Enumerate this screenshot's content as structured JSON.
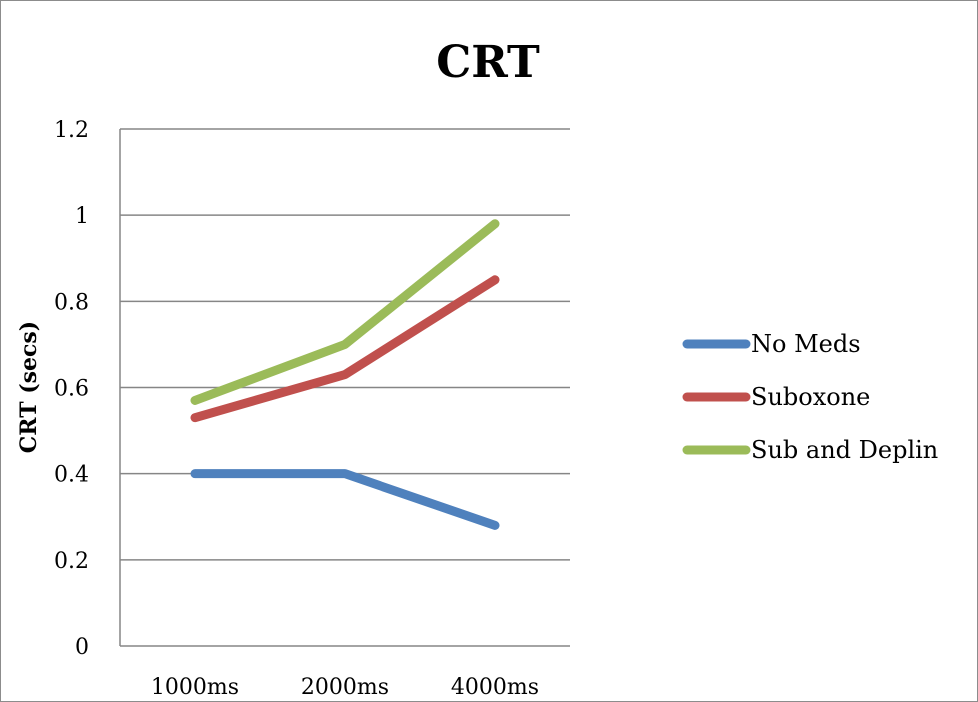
{
  "chart_data": {
    "type": "line",
    "title": "CRT",
    "xlabel": "",
    "ylabel": "CRT (secs)",
    "categories": [
      "1000ms",
      "2000ms",
      "4000ms"
    ],
    "ylim": [
      0,
      1.2
    ],
    "yticks": [
      "0",
      "0.2",
      "0.4",
      "0.6",
      "0.8",
      "1",
      "1.2"
    ],
    "grid": true,
    "legend_position": "right",
    "series": [
      {
        "name": "No Meds",
        "values": [
          0.4,
          0.4,
          0.28
        ],
        "color": "#4f81bd"
      },
      {
        "name": "Suboxone",
        "values": [
          0.53,
          0.63,
          0.85
        ],
        "color": "#c0504d"
      },
      {
        "name": "Sub and Deplin",
        "values": [
          0.57,
          0.7,
          0.98
        ],
        "color": "#9bbb59"
      }
    ]
  }
}
